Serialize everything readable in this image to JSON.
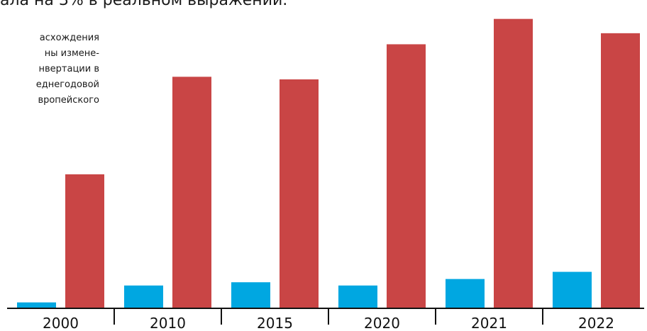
{
  "header": {
    "headline_fragment": "ала на 3% в реальном выражении."
  },
  "note": {
    "lines": [
      "асхождения",
      "ны  измене-",
      "нвертации в",
      "еднегодовой",
      "вропейского"
    ]
  },
  "colors": {
    "series_a": "#00a7e1",
    "series_b": "#c94545",
    "axis": "#111111",
    "background": "#ffffff"
  },
  "chart_data": {
    "type": "bar",
    "categories": [
      "2000",
      "2010",
      "2015",
      "2020",
      "2021",
      "2022"
    ],
    "series": [
      {
        "values": [
          0.8,
          3.4,
          3.9,
          3.4,
          4.4,
          5.5
        ]
      },
      {
        "values": [
          20.5,
          35.5,
          35.1,
          40.5,
          44.4,
          42.2
        ]
      }
    ],
    "ylim": [
      0,
      46
    ],
    "xlabel": "",
    "ylabel": "",
    "grid": false,
    "legend": "none"
  }
}
